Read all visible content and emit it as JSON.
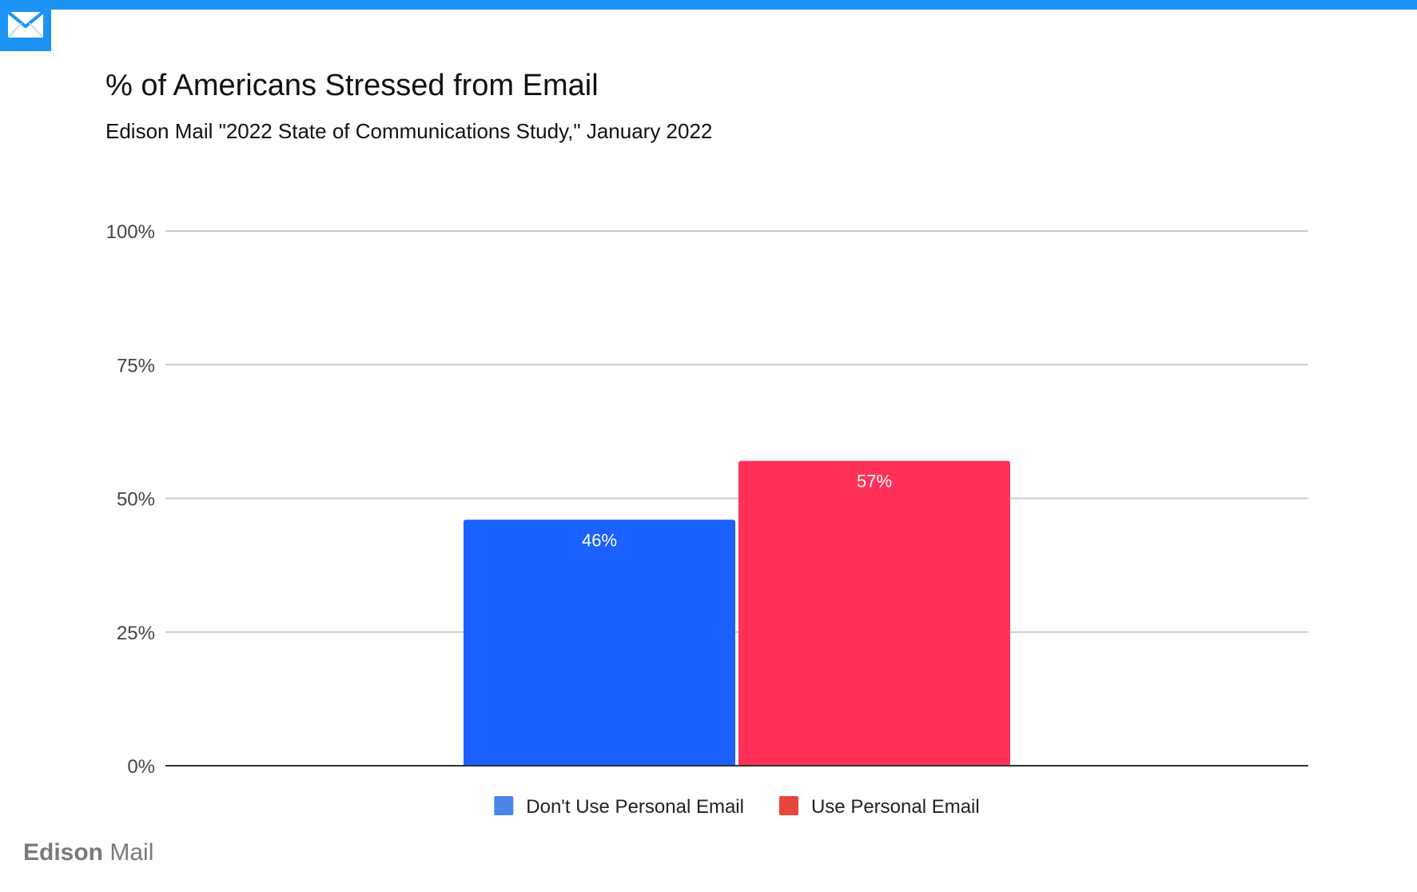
{
  "header": {
    "title": "% of Americans Stressed from Email",
    "subtitle": "Edison Mail \"2022 State of Communications Study,\" January 2022"
  },
  "brand": {
    "name_bold": "Edison",
    "name_light": "Mail",
    "icon": "mail-envelope-icon",
    "accent_color": "#1d94f5"
  },
  "chart_data": {
    "type": "bar",
    "title": "% of Americans Stressed from Email",
    "subtitle": "Edison Mail \"2022 State of Communications Study,\" January 2022",
    "categories": [
      "Don't Use Personal Email",
      "Use Personal Email"
    ],
    "values": [
      46,
      57
    ],
    "data_labels": [
      "46%",
      "57%"
    ],
    "bar_colors": [
      "#1a61ff",
      "#ff3158"
    ],
    "legend": {
      "position": "bottom",
      "entries": [
        {
          "label": "Don't Use Personal Email",
          "color": "#4a86e8"
        },
        {
          "label": "Use Personal Email",
          "color": "#e8453c"
        }
      ]
    },
    "ylim": [
      0,
      100
    ],
    "yticks": [
      0,
      25,
      50,
      75,
      100
    ],
    "ytick_labels": [
      "0%",
      "25%",
      "50%",
      "75%",
      "100%"
    ],
    "grid": true
  }
}
